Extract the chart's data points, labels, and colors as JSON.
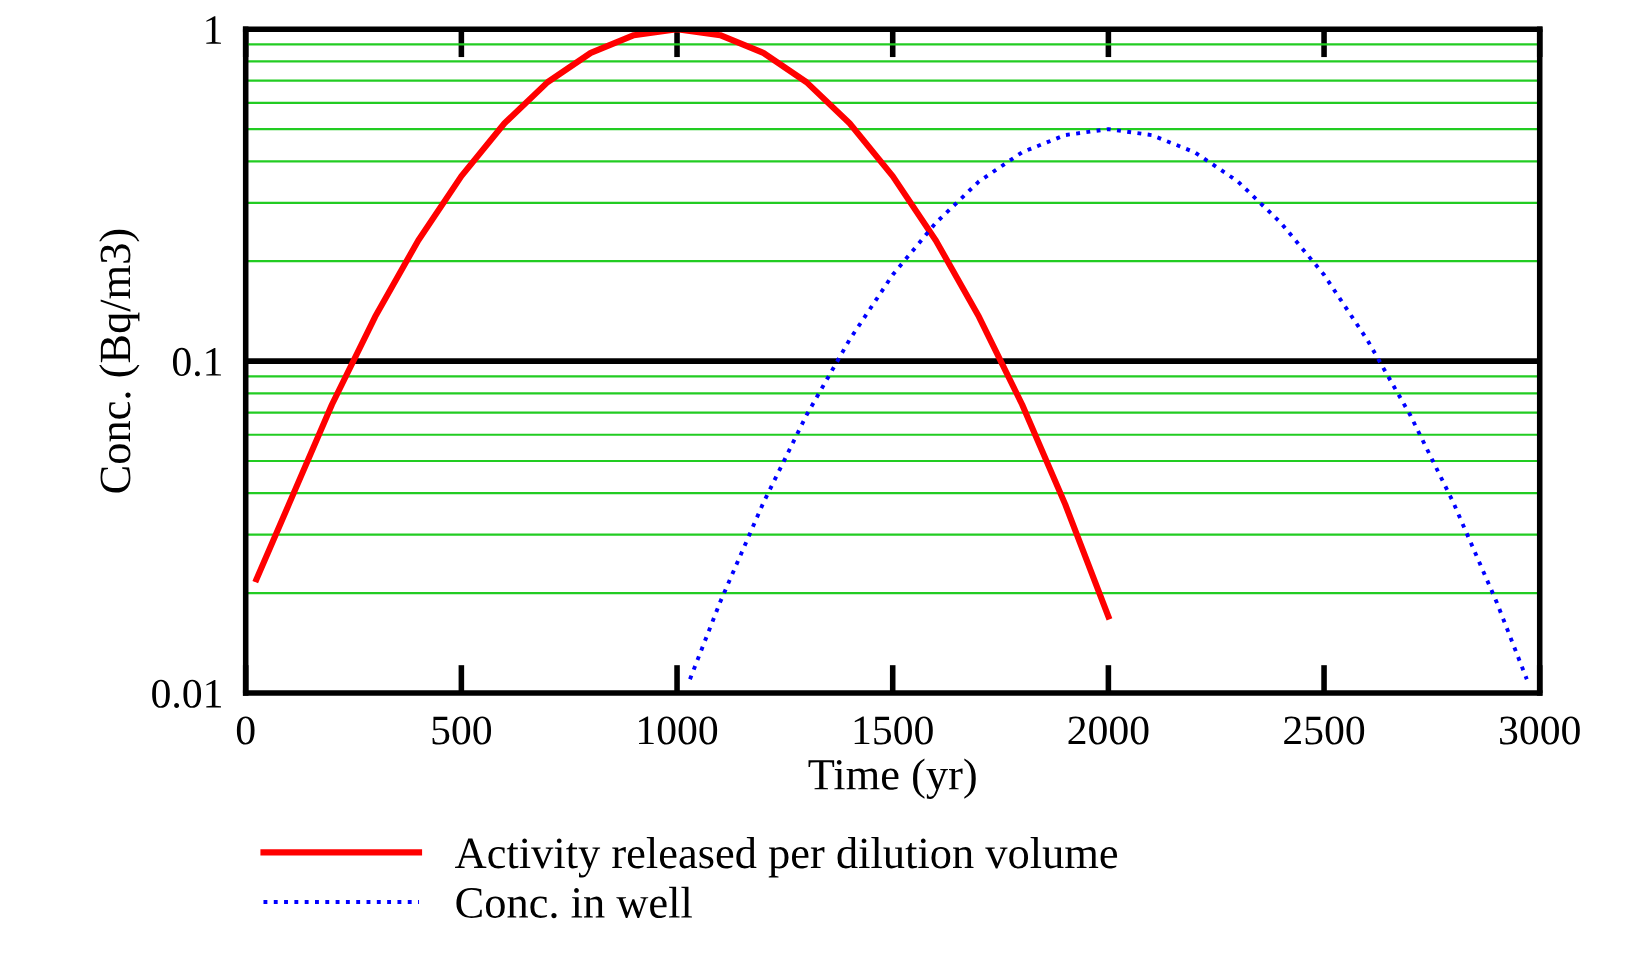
{
  "chart_data": {
    "type": "line",
    "xlabel": "Time (yr)",
    "ylabel": "Conc. (Bq/m3)",
    "log": "y",
    "grid": "y",
    "legend": "bottom",
    "xlim": [
      0,
      3000
    ],
    "xticks": [
      0,
      500,
      1000,
      1500,
      2000,
      2500,
      3000
    ],
    "ylim": [
      0.01,
      1
    ],
    "yticks": [
      0.01,
      {
        "value": 0.02,
        "label": null
      },
      {
        "value": 0.03,
        "label": null
      },
      {
        "value": 0.04,
        "label": null
      },
      {
        "value": 0.05,
        "label": null
      },
      {
        "value": 0.06,
        "label": null
      },
      {
        "value": 0.07,
        "label": null
      },
      {
        "value": 0.08,
        "label": null
      },
      {
        "value": 0.09,
        "label": null
      },
      0.1,
      {
        "value": 0.2,
        "label": null
      },
      {
        "value": 0.3,
        "label": null
      },
      {
        "value": 0.4,
        "label": null
      },
      {
        "value": 0.5,
        "label": null
      },
      {
        "value": 0.6,
        "label": null
      },
      {
        "value": 0.7,
        "label": null
      },
      {
        "value": 0.8,
        "label": null
      },
      {
        "value": 0.9,
        "label": null
      },
      1
    ],
    "ref_lines": [
      {
        "axis": "y",
        "value": 0.1,
        "color": "#000000"
      }
    ],
    "series": [
      {
        "name": "Activity released per dilution volume",
        "color": "#ff0000",
        "line_style": "solid",
        "x": [
          25,
          100,
          200,
          300,
          400,
          500,
          600,
          700,
          800,
          900,
          1000,
          1100,
          1200,
          1300,
          1400,
          1500,
          1600,
          1700,
          1800,
          1900,
          2000
        ],
        "values": [
          0.022,
          0.037,
          0.074,
          0.136,
          0.231,
          0.361,
          0.521,
          0.693,
          0.849,
          0.96,
          1,
          0.96,
          0.849,
          0.693,
          0.521,
          0.361,
          0.231,
          0.136,
          0.074,
          0.037,
          0.017
        ]
      },
      {
        "name": "Conc. in well",
        "color": "#0000ff",
        "line_style": "dotted",
        "x": [
          1030,
          1100,
          1200,
          1300,
          1400,
          1500,
          1600,
          1700,
          1800,
          1900,
          2000,
          2100,
          2200,
          2300,
          2400,
          2500,
          2600,
          2700,
          2800,
          2900,
          2970
        ],
        "values": [
          0.011,
          0.0188,
          0.0374,
          0.0687,
          0.116,
          0.182,
          0.261,
          0.348,
          0.426,
          0.48,
          0.5,
          0.48,
          0.426,
          0.348,
          0.261,
          0.182,
          0.116,
          0.0687,
          0.0374,
          0.0188,
          0.011
        ]
      }
    ]
  }
}
